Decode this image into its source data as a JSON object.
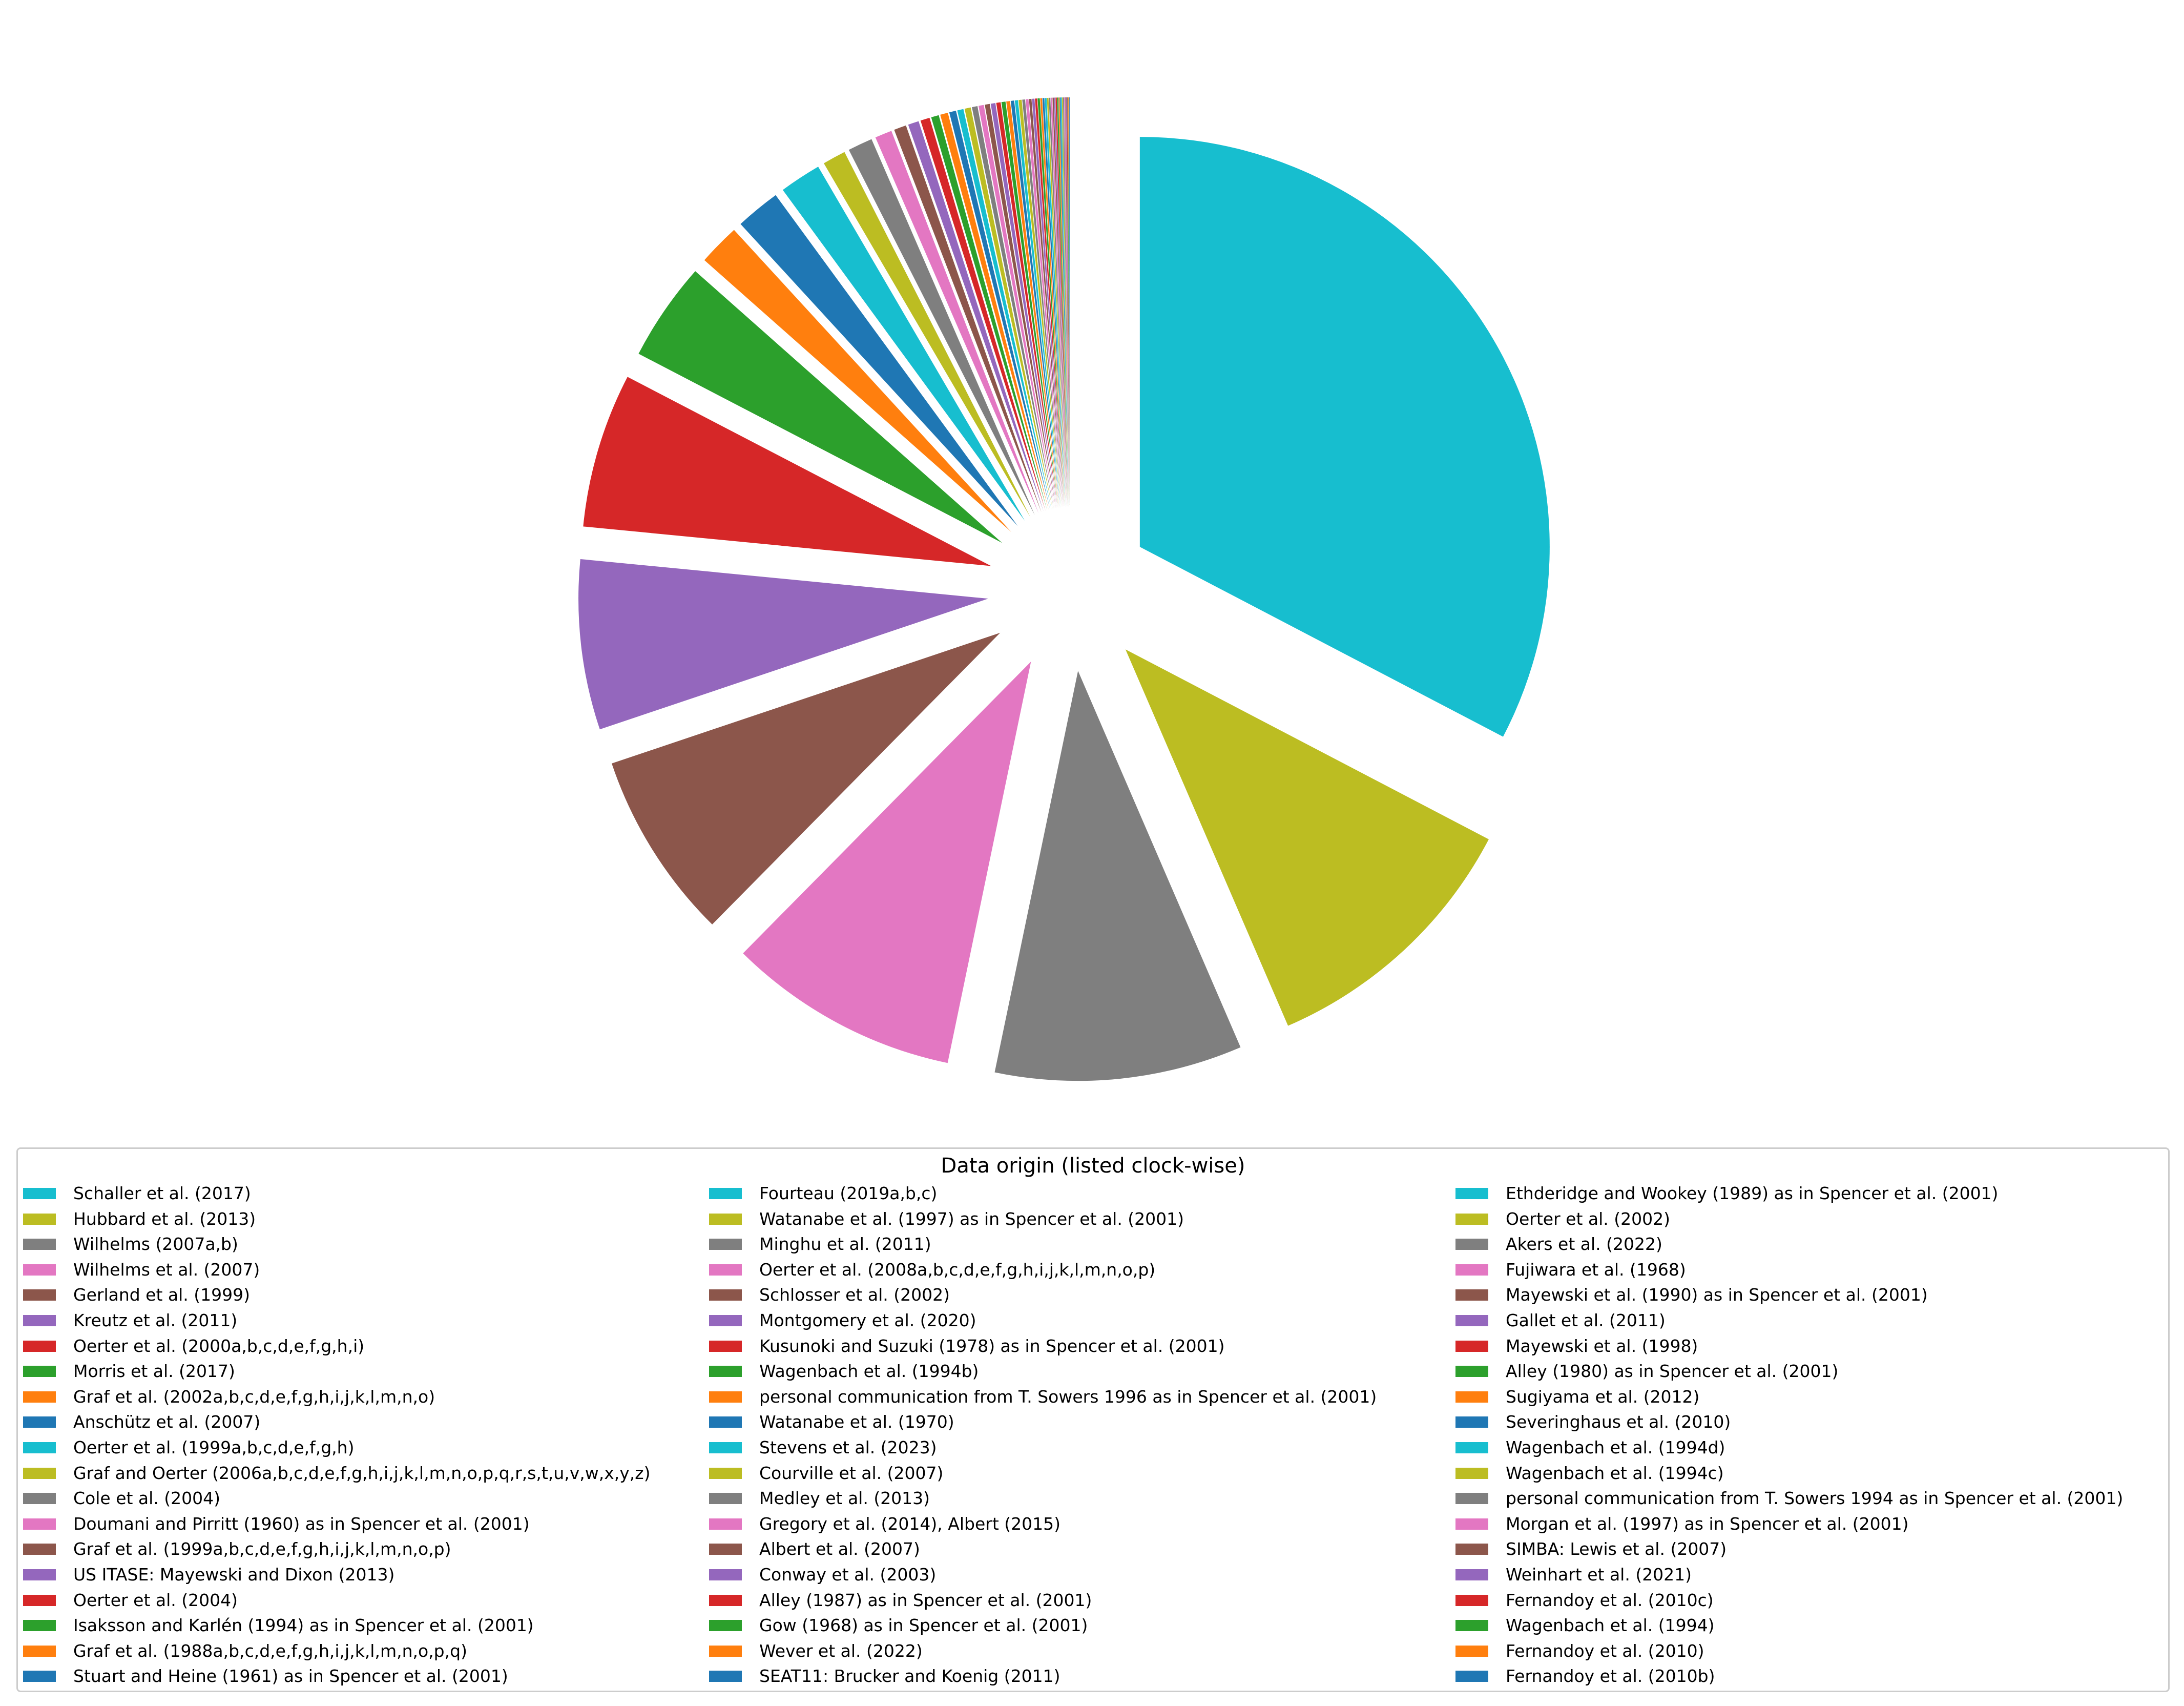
{
  "chart_data": {
    "type": "pie",
    "title": "",
    "legend_title": "Data origin (listed clock-wise)",
    "legend_placement": "bottom",
    "exploded": true,
    "direction": "clockwise",
    "start_angle_deg": 90,
    "palette": [
      "#17becf",
      "#bcbd22",
      "#7f7f7f",
      "#e377c2",
      "#8c564b",
      "#9467bd",
      "#d62728",
      "#2ca02c",
      "#ff7f0e",
      "#1f77b4"
    ],
    "labels": [
      "Schaller et al. (2017)",
      "Hubbard et al. (2013)",
      "Wilhelms (2007a,b)",
      "Wilhelms et al. (2007)",
      "Gerland et al. (1999)",
      "Kreutz et al. (2011)",
      "Oerter et al. (2000a,b,c,d,e,f,g,h,i)",
      "Morris et al. (2017)",
      "Graf et al. (2002a,b,c,d,e,f,g,h,i,j,k,l,m,n,o)",
      "Anschütz et al. (2007)",
      "Oerter et al. (1999a,b,c,d,e,f,g,h)",
      "Graf and Oerter (2006a,b,c,d,e,f,g,h,i,j,k,l,m,n,o,p,q,r,s,t,u,v,w,x,y,z)",
      "Cole et al. (2004)",
      "Doumani and Pirritt (1960) as in Spencer et al. (2001)",
      "Graf et al. (1999a,b,c,d,e,f,g,h,i,j,k,l,m,n,o,p)",
      "US ITASE: Mayewski and Dixon (2013)",
      "Oerter et al. (2004)",
      "Isaksson and Karlén (1994) as in Spencer et al. (2001)",
      "Graf et al. (1988a,b,c,d,e,f,g,h,i,j,k,l,m,n,o,p,q)",
      "Stuart and Heine (1961) as in Spencer et al. (2001)",
      "Fourteau (2019a,b,c)",
      "Watanabe et al. (1997) as in Spencer et al. (2001)",
      "Minghu et al. (2011)",
      "Oerter et al. (2008a,b,c,d,e,f,g,h,i,j,k,l,m,n,o,p)",
      "Schlosser et al. (2002)",
      "Montgomery et al. (2020)",
      "Kusunoki and Suzuki (1978) as in Spencer et al. (2001)",
      "Wagenbach et al. (1994b)",
      "personal communication from T. Sowers 1996 as in Spencer et al. (2001)",
      "Watanabe et al. (1970)",
      "Stevens et al. (2023)",
      "Courville et al. (2007)",
      "Medley et al. (2013)",
      "Gregory et al. (2014), Albert (2015)",
      "Albert et al. (2007)",
      "Conway et al. (2003)",
      " Alley (1987) as in Spencer et al. (2001)",
      "Gow (1968) as in Spencer et al. (2001)",
      "Wever et al. (2022)",
      "SEAT11: Brucker and Koenig (2011)",
      "Ethderidge and Wookey (1989) as in Spencer et al. (2001)",
      "Oerter et al. (2002)",
      "Akers et al. (2022)",
      "Fujiwara et al. (1968)",
      "Mayewski et al. (1990) as in Spencer et al. (2001)",
      "Gallet et al. (2011)",
      "Mayewski et al. (1998)",
      "Alley (1980) as in Spencer et al. (2001)",
      "Sugiyama et al. (2012)",
      "Severinghaus et al. (2010)",
      "Wagenbach et al. (1994d)",
      "Wagenbach et al. (1994c)",
      "personal communication from T. Sowers 1994 as in Spencer et al. (2001)",
      "Morgan et al. (1997) as in Spencer et al. (2001)",
      "SIMBA: Lewis et al. (2007)",
      "Weinhart et al. (2021)",
      "Fernandoy et al. (2010c)",
      "Wagenbach et al. (1994)",
      "Fernandoy et al. (2010)",
      "Fernandoy et al. (2010b)"
    ],
    "values": [
      26.8,
      8.9,
      8.0,
      7.5,
      6.1,
      5.5,
      5.0,
      3.2,
      1.35,
      1.45,
      1.35,
      0.75,
      0.8,
      0.55,
      0.4,
      0.35,
      0.3,
      0.25,
      0.25,
      0.22,
      0.2,
      0.2,
      0.18,
      0.17,
      0.16,
      0.15,
      0.14,
      0.13,
      0.12,
      0.11,
      0.1,
      0.1,
      0.09,
      0.09,
      0.08,
      0.08,
      0.07,
      0.07,
      0.06,
      0.06,
      0.06,
      0.05,
      0.05,
      0.05,
      0.04,
      0.04,
      0.04,
      0.04,
      0.03,
      0.03,
      0.03,
      0.03,
      0.03,
      0.03,
      0.02,
      0.02,
      0.02,
      0.02,
      0.02,
      0.02
    ]
  }
}
